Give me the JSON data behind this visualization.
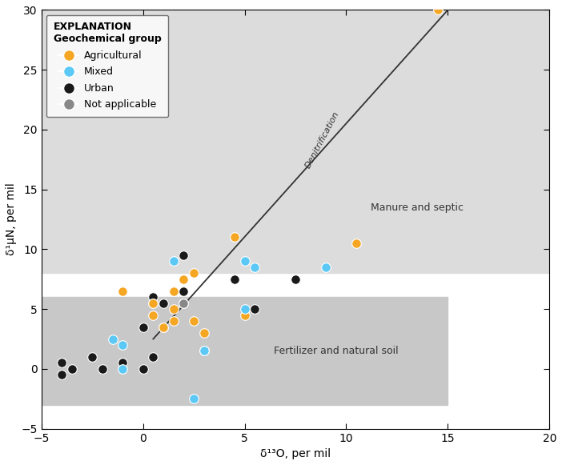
{
  "agricultural_x": [
    14.5,
    4.5,
    10.5,
    3.0,
    5.0,
    1.5,
    2.0,
    2.5,
    1.5,
    0.5,
    1.0,
    -1.0,
    1.5,
    2.0,
    0.5,
    2.5
  ],
  "agricultural_y": [
    30.0,
    11.0,
    10.5,
    3.0,
    4.5,
    6.5,
    7.5,
    8.0,
    5.0,
    4.5,
    3.5,
    6.5,
    4.0,
    5.5,
    5.5,
    4.0
  ],
  "mixed_x": [
    1.5,
    5.0,
    5.5,
    9.0,
    5.0,
    3.0,
    -1.0,
    -1.5,
    3.0,
    2.5,
    -1.0
  ],
  "mixed_y": [
    9.0,
    9.0,
    8.5,
    8.5,
    5.0,
    1.5,
    2.0,
    2.5,
    1.5,
    -2.5,
    0.0
  ],
  "urban_x": [
    2.0,
    4.5,
    2.0,
    1.5,
    0.5,
    0.5,
    1.0,
    1.0,
    0.0,
    0.0,
    -1.0,
    -2.0,
    -3.5,
    -2.5,
    -4.0,
    -4.0,
    5.5,
    7.5,
    0.5
  ],
  "urban_y": [
    9.5,
    7.5,
    6.5,
    6.5,
    6.0,
    5.5,
    5.5,
    3.5,
    3.5,
    0.0,
    0.5,
    0.0,
    0.0,
    1.0,
    0.5,
    -0.5,
    5.0,
    7.5,
    1.0
  ],
  "not_applicable_x": [
    2.0
  ],
  "not_applicable_y": [
    5.5
  ],
  "denitrification_line_x": [
    0.5,
    15.0
  ],
  "denitrification_line_y": [
    2.5,
    30.0
  ],
  "xlim": [
    -5,
    20
  ],
  "ylim": [
    -5,
    30
  ],
  "xlabel": "δ¹³O, per mil",
  "ylabel": "δ¹µN, per mil",
  "agricultural_color": "#F5A623",
  "mixed_color": "#5BC8F5",
  "urban_color": "#1a1a1a",
  "not_applicable_color": "#888888",
  "manure_ymin": 8,
  "manure_color": "#DCDCDC",
  "fertilizer_xmax": 15,
  "fertilizer_ymin": -3,
  "fertilizer_ymax": 6,
  "fertilizer_color": "#C8C8C8",
  "plot_bg_color": "#FFFFFF",
  "denitrification_label": "Denitrification",
  "manure_label": "Manure and septic",
  "fertilizer_label": "Fertilizer and natural soil",
  "legend_title": "EXPLANATION",
  "legend_subtitle": "Geochemical group",
  "legend_items": [
    "Agricultural",
    "Mixed",
    "Urban",
    "Not applicable"
  ],
  "marker_size": 70,
  "marker_edge_color": "white",
  "marker_edge_width": 0.8
}
